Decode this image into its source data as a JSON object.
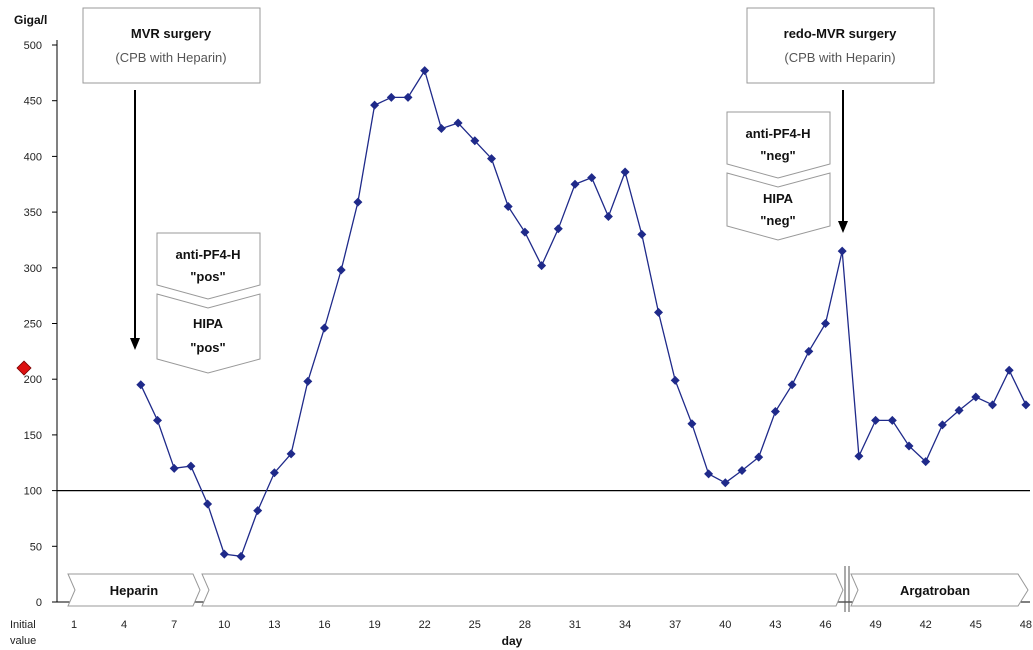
{
  "chart_data": {
    "type": "line",
    "ylabel": "Giga/l",
    "xlabel": "day",
    "ylim": [
      0,
      500
    ],
    "yticks": [
      0,
      50,
      100,
      150,
      200,
      250,
      300,
      350,
      400,
      450,
      500
    ],
    "x_start_label_line1": "Initial",
    "x_start_label_line2": "value",
    "xtick_labels": [
      "1",
      "4",
      "7",
      "10",
      "13",
      "16",
      "19",
      "22",
      "25",
      "28",
      "31",
      "34",
      "37",
      "40",
      "43",
      "46",
      "49",
      "42",
      "45",
      "48"
    ],
    "reference_line": 100,
    "initial_value": 210,
    "initial_marker_color": "#dd1111",
    "series_color": "#1f2a8a",
    "series": [
      {
        "x": [
          5,
          6,
          7,
          8,
          9,
          10,
          11,
          12,
          13,
          14,
          15,
          16,
          17,
          18,
          19,
          20,
          21,
          22,
          23,
          24,
          25,
          26,
          27,
          28,
          29,
          30,
          31,
          32,
          33,
          34,
          35,
          36,
          37,
          38,
          39,
          40,
          41,
          42,
          43,
          44,
          45,
          46,
          47,
          48,
          49,
          50,
          51,
          52,
          53,
          54,
          55,
          56,
          57,
          58
        ],
        "values": [
          195,
          163,
          120,
          122,
          88,
          43,
          41,
          82,
          116,
          133,
          198,
          246,
          298,
          359,
          446,
          453,
          453,
          477,
          425,
          430,
          414,
          398,
          355,
          332,
          302,
          335,
          375,
          381,
          346,
          386,
          330,
          260,
          199,
          160,
          115,
          107,
          118,
          130,
          171,
          195,
          225,
          250,
          315,
          131,
          163,
          163,
          140,
          126,
          159,
          172,
          184,
          177,
          208,
          177
        ]
      }
    ],
    "annotations": [
      {
        "title": "MVR surgery",
        "subtitle": "(CPB with Heparin)",
        "day": 4.5,
        "arrow_to": 225
      },
      {
        "title": "redo-MVR surgery",
        "subtitle": "(CPB with Heparin)",
        "day": 47,
        "arrow_to": 318
      }
    ],
    "test_labels": [
      {
        "line1": "anti-PF4-H",
        "line2": "\"pos\"",
        "line3": "HIPA",
        "line4": "\"pos\""
      },
      {
        "line1": "anti-PF4-H",
        "line2": "\"neg\"",
        "line3": "HIPA",
        "line4": "\"neg\""
      }
    ],
    "therapy": [
      {
        "label": "Heparin",
        "from": 0,
        "to": 8.8
      },
      {
        "label": "",
        "from": 8.8,
        "to": 47
      },
      {
        "label": "Argatroban",
        "from": 47,
        "to": 58
      }
    ]
  }
}
